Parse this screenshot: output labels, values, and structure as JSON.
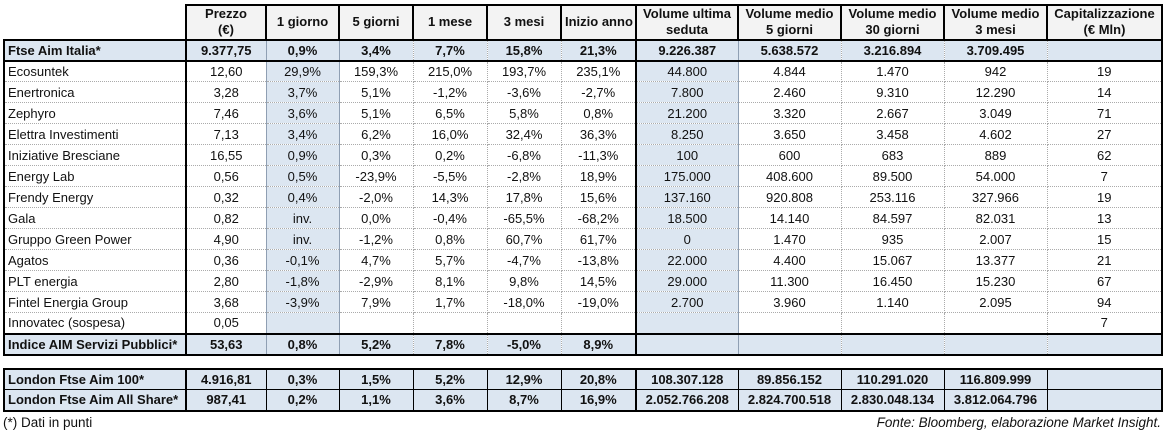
{
  "meta": {
    "highlight_color": "#dce6f1",
    "header_bg": "#f3f3f3",
    "border_color": "#000000"
  },
  "header": {
    "columns": [
      {
        "key": "prezzo",
        "line1": "Prezzo",
        "line2": "(€)"
      },
      {
        "key": "g1",
        "line1": "1 giorno",
        "line2": ""
      },
      {
        "key": "g5",
        "line1": "5 giorni",
        "line2": ""
      },
      {
        "key": "m1",
        "line1": "1 mese",
        "line2": ""
      },
      {
        "key": "m3",
        "line1": "3 mesi",
        "line2": ""
      },
      {
        "key": "inizio_anno",
        "line1": "Inizio anno",
        "line2": ""
      },
      {
        "key": "vol_ultima_seduta",
        "line1": "Volume ultima",
        "line2": "seduta"
      },
      {
        "key": "vol_medio_5g",
        "line1": "Volume medio",
        "line2": "5 giorni"
      },
      {
        "key": "vol_medio_30g",
        "line1": "Volume medio",
        "line2": "30 giorni"
      },
      {
        "key": "vol_medio_3m",
        "line1": "Volume medio",
        "line2": "3 mesi"
      },
      {
        "key": "capitalizzazione",
        "line1": "Capitalizzazione",
        "line2": "(€ Mln)"
      }
    ]
  },
  "main_table": {
    "rows": [
      {
        "name": "Ftse Aim Italia*",
        "style": "index",
        "values": [
          "9.377,75",
          "0,9%",
          "3,4%",
          "7,7%",
          "15,8%",
          "21,3%",
          "9.226.387",
          "5.638.572",
          "3.216.894",
          "3.709.495",
          ""
        ]
      },
      {
        "name": "Ecosuntek",
        "style": "",
        "values": [
          "12,60",
          "29,9%",
          "159,3%",
          "215,0%",
          "193,7%",
          "235,1%",
          "44.800",
          "4.844",
          "1.470",
          "942",
          "19"
        ]
      },
      {
        "name": "Enertronica",
        "style": "",
        "values": [
          "3,28",
          "3,7%",
          "5,1%",
          "-1,2%",
          "-3,6%",
          "-2,7%",
          "7.800",
          "2.460",
          "9.310",
          "12.290",
          "14"
        ]
      },
      {
        "name": "Zephyro",
        "style": "",
        "values": [
          "7,46",
          "3,6%",
          "5,1%",
          "6,5%",
          "5,8%",
          "0,8%",
          "21.200",
          "3.320",
          "2.667",
          "3.049",
          "71"
        ]
      },
      {
        "name": "Elettra Investimenti",
        "style": "",
        "values": [
          "7,13",
          "3,4%",
          "6,2%",
          "16,0%",
          "32,4%",
          "36,3%",
          "8.250",
          "3.650",
          "3.458",
          "4.602",
          "27"
        ]
      },
      {
        "name": "Iniziative Bresciane",
        "style": "",
        "values": [
          "16,55",
          "0,9%",
          "0,3%",
          "0,2%",
          "-6,8%",
          "-11,3%",
          "100",
          "600",
          "683",
          "889",
          "62"
        ]
      },
      {
        "name": "Energy Lab",
        "style": "",
        "values": [
          "0,56",
          "0,5%",
          "-23,9%",
          "-5,5%",
          "-2,8%",
          "18,9%",
          "175.000",
          "408.600",
          "89.500",
          "54.000",
          "7"
        ]
      },
      {
        "name": "Frendy Energy",
        "style": "",
        "values": [
          "0,32",
          "0,4%",
          "-2,0%",
          "14,3%",
          "17,8%",
          "15,6%",
          "137.160",
          "920.808",
          "253.116",
          "327.966",
          "19"
        ]
      },
      {
        "name": "Gala",
        "style": "",
        "values": [
          "0,82",
          "inv.",
          "0,0%",
          "-0,4%",
          "-65,5%",
          "-68,2%",
          "18.500",
          "14.140",
          "84.597",
          "82.031",
          "13"
        ]
      },
      {
        "name": "Gruppo Green Power",
        "style": "",
        "values": [
          "4,90",
          "inv.",
          "-1,2%",
          "0,8%",
          "60,7%",
          "61,7%",
          "0",
          "1.470",
          "935",
          "2.007",
          "15"
        ]
      },
      {
        "name": "Agatos",
        "style": "",
        "values": [
          "0,36",
          "-0,1%",
          "4,7%",
          "5,7%",
          "-4,7%",
          "-13,8%",
          "22.000",
          "4.400",
          "15.067",
          "13.377",
          "21"
        ]
      },
      {
        "name": "PLT energia",
        "style": "",
        "values": [
          "2,80",
          "-1,8%",
          "-2,9%",
          "8,1%",
          "9,8%",
          "14,5%",
          "29.000",
          "11.300",
          "16.450",
          "15.230",
          "67"
        ]
      },
      {
        "name": "Fintel Energia Group",
        "style": "",
        "values": [
          "3,68",
          "-3,9%",
          "7,9%",
          "1,7%",
          "-18,0%",
          "-19,0%",
          "2.700",
          "3.960",
          "1.140",
          "2.095",
          "94"
        ]
      },
      {
        "name": "Innovatec (sospesa)",
        "style": "",
        "values": [
          "0,05",
          "",
          "",
          "",
          "",
          "",
          "",
          "",
          "",
          "",
          "7"
        ]
      },
      {
        "name": "Indice AIM Servizi Pubblici*",
        "style": "index",
        "values": [
          "53,63",
          "0,8%",
          "5,2%",
          "7,8%",
          "-5,0%",
          "8,9%",
          "",
          "",
          "",
          "",
          ""
        ]
      }
    ]
  },
  "london_table": {
    "rows": [
      {
        "name": "London Ftse Aim 100*",
        "style": "index",
        "values": [
          "4.916,81",
          "0,3%",
          "1,5%",
          "5,2%",
          "12,9%",
          "20,8%",
          "108.307.128",
          "89.856.152",
          "110.291.020",
          "116.809.999",
          ""
        ]
      },
      {
        "name": "London Ftse Aim All Share*",
        "style": "index",
        "values": [
          "987,41",
          "0,2%",
          "1,1%",
          "3,6%",
          "8,7%",
          "16,9%",
          "2.052.766.208",
          "2.824.700.518",
          "2.830.048.134",
          "3.812.064.796",
          ""
        ]
      }
    ]
  },
  "footer": {
    "note": "(*) Dati in punti",
    "source": "Fonte: Bloomberg, elaborazione Market Insight."
  }
}
